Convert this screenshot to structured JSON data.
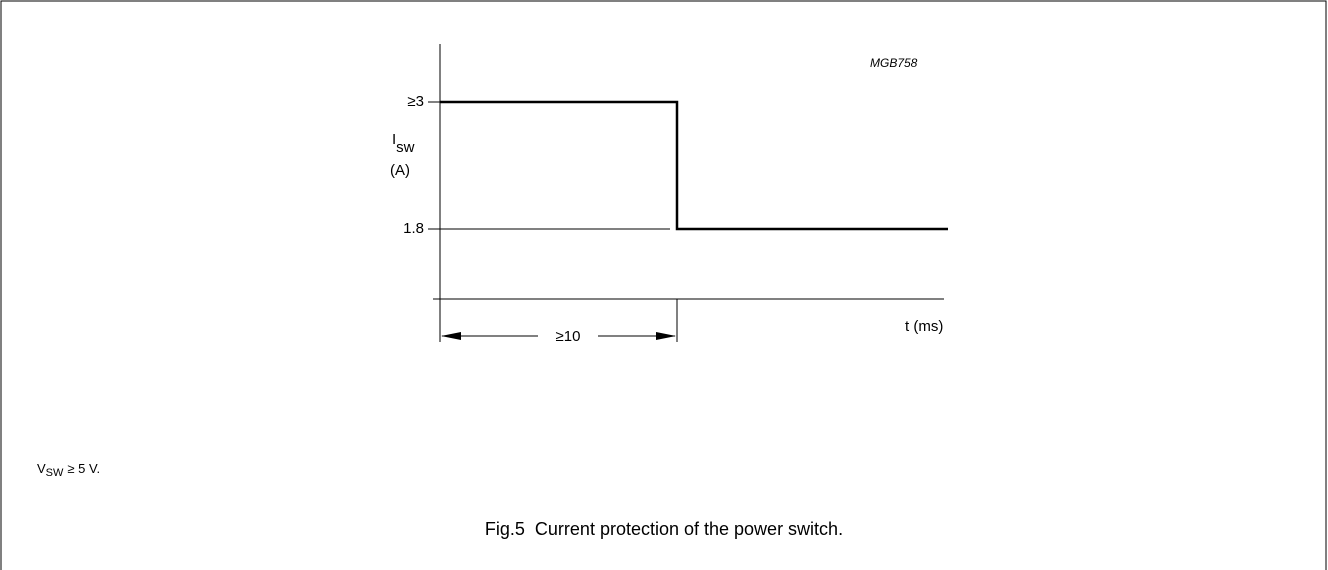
{
  "figure_code": "MGB758",
  "y_axis": {
    "tick_high": "≥3",
    "tick_low": "1.8",
    "symbol": "I",
    "subscript": "sw",
    "unit": "(A)"
  },
  "x_axis": {
    "label": "t (ms)",
    "duration": "≥10"
  },
  "note": {
    "symbol": "V",
    "subscript": "SW",
    "text": "≥ 5 V."
  },
  "caption": "Fig.5  Current protection of the power switch."
}
